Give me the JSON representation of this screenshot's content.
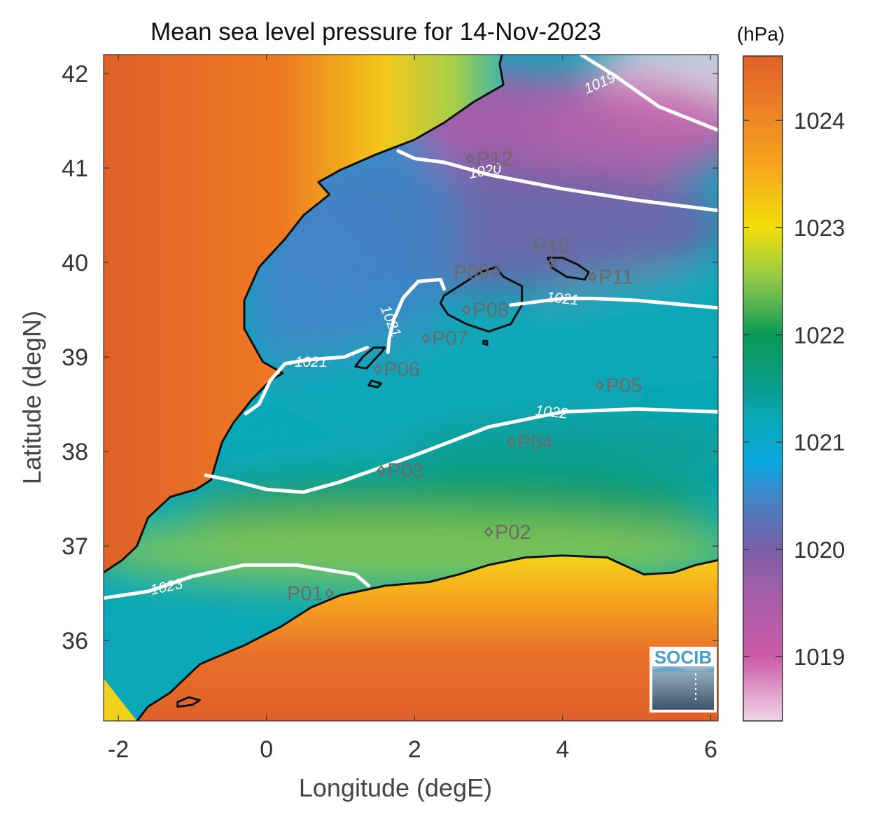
{
  "title": "Mean sea level pressure for 14-Nov-2023",
  "colorbar": {
    "unit": "(hPa)",
    "ticks": [
      "1019",
      "1020",
      "1021",
      "1022",
      "1023",
      "1024"
    ],
    "range": [
      1018.4,
      1024.6
    ],
    "colormap": [
      {
        "v": 1018.4,
        "c": "#f0d6e8"
      },
      {
        "v": 1019.0,
        "c": "#cc5aa8"
      },
      {
        "v": 1019.6,
        "c": "#a35ea8"
      },
      {
        "v": 1020.0,
        "c": "#7a5ea8"
      },
      {
        "v": 1020.5,
        "c": "#3f86c8"
      },
      {
        "v": 1020.8,
        "c": "#0aa7e0"
      },
      {
        "v": 1021.2,
        "c": "#0aa8b8"
      },
      {
        "v": 1021.5,
        "c": "#0a9c8e"
      },
      {
        "v": 1022.0,
        "c": "#0a9a55"
      },
      {
        "v": 1022.5,
        "c": "#8cc84a"
      },
      {
        "v": 1023.0,
        "c": "#f2df0a"
      },
      {
        "v": 1023.6,
        "c": "#f7a21e"
      },
      {
        "v": 1024.6,
        "c": "#e0602a"
      }
    ]
  },
  "axes": {
    "xlabel": "Longitude (degE)",
    "ylabel": "Latitude (degN)",
    "xlim": [
      -2.2,
      6.1
    ],
    "ylim": [
      35.15,
      42.2
    ],
    "xticks": [
      "-2",
      "0",
      "2",
      "4",
      "6"
    ],
    "yticks": [
      "36",
      "37",
      "38",
      "39",
      "40",
      "41",
      "42"
    ]
  },
  "stations": [
    {
      "name": "P01",
      "lon": 0.85,
      "lat": 36.5,
      "label_side": "left"
    },
    {
      "name": "P02",
      "lon": 3.0,
      "lat": 37.15,
      "label_side": "right"
    },
    {
      "name": "P03",
      "lon": 1.55,
      "lat": 37.8,
      "label_side": "right"
    },
    {
      "name": "P04",
      "lon": 3.3,
      "lat": 38.1,
      "label_side": "right"
    },
    {
      "name": "P05",
      "lon": 4.5,
      "lat": 38.7,
      "label_side": "right"
    },
    {
      "name": "P06",
      "lon": 1.5,
      "lat": 38.87,
      "label_side": "right"
    },
    {
      "name": "P07",
      "lon": 2.15,
      "lat": 39.2,
      "label_side": "right"
    },
    {
      "name": "P08",
      "lon": 2.7,
      "lat": 39.5,
      "label_side": "right"
    },
    {
      "name": "P09",
      "lon": 3.1,
      "lat": 39.9,
      "label_side": "left"
    },
    {
      "name": "P10",
      "lon": 3.85,
      "lat": 40.0,
      "label_side": "above"
    },
    {
      "name": "P11",
      "lon": 4.4,
      "lat": 39.85,
      "label_side": "right"
    },
    {
      "name": "P12",
      "lon": 2.75,
      "lat": 41.1,
      "label_side": "right"
    }
  ],
  "contours": [
    {
      "value": "1019",
      "label_lon": 4.5,
      "label_lat": 41.9,
      "label_angle": 24,
      "path": [
        [
          4.25,
          42.2
        ],
        [
          4.7,
          41.98
        ],
        [
          5.3,
          41.65
        ],
        [
          6.1,
          41.4
        ]
      ]
    },
    {
      "value": "1020",
      "label_lon": 2.95,
      "label_lat": 40.97,
      "label_angle": 10,
      "path": [
        [
          1.78,
          41.18
        ],
        [
          2.0,
          41.1
        ],
        [
          2.4,
          41.06
        ],
        [
          3.0,
          40.93
        ],
        [
          4.0,
          40.78
        ],
        [
          5.0,
          40.66
        ],
        [
          6.1,
          40.55
        ]
      ]
    },
    {
      "value": "1021",
      "label_lon": 4.0,
      "label_lat": 39.62,
      "label_angle": -6,
      "path": [
        [
          3.3,
          39.55
        ],
        [
          3.6,
          39.58
        ],
        [
          4.0,
          39.62
        ],
        [
          4.4,
          39.62
        ],
        [
          5.0,
          39.6
        ],
        [
          6.1,
          39.52
        ]
      ]
    },
    {
      "value": "1021",
      "label_lon": 1.68,
      "label_lat": 39.38,
      "label_angle": -68,
      "path": [
        [
          1.64,
          39.05
        ],
        [
          1.66,
          39.2
        ],
        [
          1.72,
          39.4
        ],
        [
          1.85,
          39.63
        ],
        [
          2.05,
          39.8
        ],
        [
          2.35,
          39.82
        ],
        [
          2.4,
          39.72
        ]
      ]
    },
    {
      "value": "1021",
      "label_lon": 0.6,
      "label_lat": 38.95,
      "label_angle": 0,
      "path": [
        [
          -0.28,
          38.4
        ],
        [
          -0.1,
          38.5
        ],
        [
          0.05,
          38.75
        ],
        [
          0.25,
          38.93
        ],
        [
          0.55,
          38.97
        ],
        [
          1.05,
          39.0
        ],
        [
          1.36,
          39.1
        ]
      ]
    },
    {
      "value": "1022",
      "label_lon": 3.85,
      "label_lat": 38.42,
      "label_angle": -6,
      "path": [
        [
          -0.82,
          37.75
        ],
        [
          -0.5,
          37.7
        ],
        [
          0.0,
          37.6
        ],
        [
          0.5,
          37.57
        ],
        [
          1.0,
          37.68
        ],
        [
          2.0,
          37.96
        ],
        [
          3.0,
          38.26
        ],
        [
          4.0,
          38.42
        ],
        [
          5.0,
          38.45
        ],
        [
          6.1,
          38.42
        ]
      ]
    },
    {
      "value": "1023",
      "label_lon": -1.35,
      "label_lat": 36.57,
      "label_angle": 12,
      "path": [
        [
          -2.2,
          36.45
        ],
        [
          -1.6,
          36.52
        ],
        [
          -1.0,
          36.68
        ],
        [
          -0.3,
          36.8
        ],
        [
          0.4,
          36.8
        ],
        [
          1.2,
          36.7
        ],
        [
          1.38,
          36.58
        ]
      ]
    }
  ],
  "coast": {
    "iberia": [
      [
        -2.2,
        36.72
      ],
      [
        -1.95,
        36.85
      ],
      [
        -1.75,
        37.0
      ],
      [
        -1.6,
        37.3
      ],
      [
        -1.3,
        37.52
      ],
      [
        -0.95,
        37.6
      ],
      [
        -0.75,
        37.7
      ],
      [
        -0.6,
        38.1
      ],
      [
        -0.45,
        38.3
      ],
      [
        -0.2,
        38.55
      ],
      [
        0.05,
        38.75
      ],
      [
        0.22,
        38.83
      ],
      [
        -0.05,
        38.95
      ],
      [
        -0.3,
        39.3
      ],
      [
        -0.3,
        39.6
      ],
      [
        -0.1,
        39.95
      ],
      [
        0.25,
        40.25
      ],
      [
        0.5,
        40.5
      ],
      [
        0.85,
        40.72
      ],
      [
        0.7,
        40.85
      ],
      [
        1.0,
        40.98
      ],
      [
        1.5,
        41.15
      ],
      [
        2.0,
        41.3
      ],
      [
        2.4,
        41.48
      ],
      [
        2.8,
        41.7
      ],
      [
        3.2,
        41.88
      ],
      [
        3.15,
        42.1
      ],
      [
        3.18,
        42.2
      ]
    ],
    "africa": [
      [
        -1.75,
        35.15
      ],
      [
        -1.6,
        35.3
      ],
      [
        -1.3,
        35.45
      ],
      [
        -0.9,
        35.75
      ],
      [
        -0.3,
        35.95
      ],
      [
        0.2,
        36.15
      ],
      [
        0.6,
        36.35
      ],
      [
        1.0,
        36.48
      ],
      [
        1.6,
        36.58
      ],
      [
        2.2,
        36.62
      ],
      [
        2.6,
        36.7
      ],
      [
        3.0,
        36.8
      ],
      [
        3.5,
        36.88
      ],
      [
        4.0,
        36.9
      ],
      [
        4.6,
        36.88
      ],
      [
        5.1,
        36.7
      ],
      [
        5.5,
        36.72
      ],
      [
        5.8,
        36.8
      ],
      [
        6.1,
        36.85
      ]
    ],
    "alboran": [
      [
        -1.2,
        35.3
      ],
      [
        -1.0,
        35.32
      ],
      [
        -0.9,
        35.37
      ],
      [
        -1.05,
        35.4
      ],
      [
        -1.2,
        35.35
      ],
      [
        -1.2,
        35.3
      ]
    ],
    "mallorca": [
      [
        2.35,
        39.57
      ],
      [
        2.45,
        39.45
      ],
      [
        2.7,
        39.35
      ],
      [
        3.0,
        39.27
      ],
      [
        3.3,
        39.35
      ],
      [
        3.45,
        39.55
      ],
      [
        3.45,
        39.75
      ],
      [
        3.2,
        39.85
      ],
      [
        3.1,
        39.95
      ],
      [
        2.9,
        39.9
      ],
      [
        2.6,
        39.75
      ],
      [
        2.4,
        39.65
      ],
      [
        2.35,
        39.57
      ]
    ],
    "menorca": [
      [
        3.8,
        40.05
      ],
      [
        4.0,
        40.05
      ],
      [
        4.2,
        39.98
      ],
      [
        4.35,
        39.9
      ],
      [
        4.3,
        39.82
      ],
      [
        4.05,
        39.85
      ],
      [
        3.85,
        39.95
      ],
      [
        3.8,
        40.05
      ]
    ],
    "ibiza": [
      [
        1.2,
        38.9
      ],
      [
        1.35,
        38.88
      ],
      [
        1.55,
        39.05
      ],
      [
        1.6,
        39.1
      ],
      [
        1.45,
        39.1
      ],
      [
        1.3,
        39.0
      ],
      [
        1.2,
        38.9
      ]
    ],
    "formentera": [
      [
        1.38,
        38.7
      ],
      [
        1.5,
        38.68
      ],
      [
        1.55,
        38.72
      ],
      [
        1.42,
        38.75
      ],
      [
        1.38,
        38.7
      ]
    ],
    "cabrera": [
      [
        2.93,
        39.14
      ],
      [
        2.98,
        39.13
      ],
      [
        2.98,
        39.17
      ],
      [
        2.93,
        39.17
      ],
      [
        2.93,
        39.14
      ]
    ]
  },
  "logo": {
    "text": "SOCIB"
  }
}
